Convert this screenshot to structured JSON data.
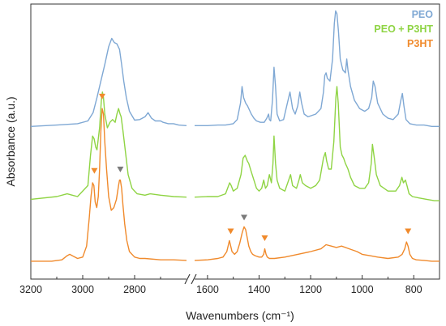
{
  "chart_data": {
    "type": "line",
    "xlabel": "Wavenumbers (cm⁻¹)",
    "ylabel": "Absorbance (a.u.)",
    "x_reversed": true,
    "x_broken_axis": true,
    "x_segments": [
      [
        3200,
        2600
      ],
      [
        1650,
        700
      ]
    ],
    "ylim": [
      0,
      1
    ],
    "grid": false,
    "legend_placement": "top-right",
    "x_ticks": [
      {
        "value": 3200,
        "label": "3200"
      },
      {
        "value": 3000,
        "label": "3000"
      },
      {
        "value": 2800,
        "label": "2800"
      },
      {
        "value": 1600,
        "label": "1600"
      },
      {
        "value": 1400,
        "label": "1400"
      },
      {
        "value": 1200,
        "label": "1200"
      },
      {
        "value": 1000,
        "label": "1000"
      },
      {
        "value": 800,
        "label": "800"
      }
    ],
    "series": [
      {
        "name": "PEO",
        "color": "#7fa8d4",
        "x": [
          3200,
          3100,
          3020,
          2980,
          2960,
          2945,
          2930,
          2915,
          2900,
          2888,
          2878,
          2868,
          2858,
          2850,
          2842,
          2832,
          2820,
          2800,
          2780,
          2760,
          2748,
          2735,
          2720,
          2700,
          2690,
          2670,
          2650,
          2630,
          2600,
          1650,
          1600,
          1560,
          1530,
          1500,
          1485,
          1472,
          1466,
          1460,
          1452,
          1445,
          1430,
          1420,
          1410,
          1395,
          1380,
          1370,
          1363,
          1360,
          1355,
          1348,
          1342,
          1336,
          1330,
          1320,
          1305,
          1290,
          1280,
          1270,
          1260,
          1250,
          1242,
          1235,
          1225,
          1210,
          1180,
          1160,
          1150,
          1145,
          1140,
          1135,
          1125,
          1115,
          1108,
          1103,
          1098,
          1092,
          1085,
          1075,
          1065,
          1060,
          1055,
          1045,
          1030,
          1010,
          990,
          975,
          963,
          957,
          950,
          940,
          920,
          900,
          880,
          860,
          850,
          844,
          838,
          830,
          815,
          790,
          760,
          730,
          700
        ],
        "y": [
          0.555,
          0.56,
          0.565,
          0.575,
          0.605,
          0.66,
          0.72,
          0.78,
          0.845,
          0.875,
          0.86,
          0.855,
          0.835,
          0.78,
          0.72,
          0.66,
          0.61,
          0.578,
          0.58,
          0.59,
          0.605,
          0.585,
          0.575,
          0.575,
          0.57,
          0.565,
          0.565,
          0.56,
          0.558,
          0.558,
          0.558,
          0.56,
          0.56,
          0.565,
          0.58,
          0.64,
          0.7,
          0.66,
          0.64,
          0.63,
          0.6,
          0.585,
          0.575,
          0.57,
          0.57,
          0.585,
          0.6,
          0.58,
          0.575,
          0.65,
          0.77,
          0.7,
          0.6,
          0.575,
          0.58,
          0.64,
          0.68,
          0.62,
          0.6,
          0.63,
          0.68,
          0.64,
          0.6,
          0.59,
          0.6,
          0.62,
          0.68,
          0.74,
          0.75,
          0.73,
          0.72,
          0.8,
          0.93,
          0.975,
          0.965,
          0.9,
          0.8,
          0.76,
          0.75,
          0.8,
          0.76,
          0.7,
          0.65,
          0.62,
          0.61,
          0.62,
          0.66,
          0.72,
          0.7,
          0.64,
          0.6,
          0.585,
          0.58,
          0.6,
          0.65,
          0.675,
          0.63,
          0.58,
          0.565,
          0.56,
          0.56,
          0.555,
          0.555
        ]
      },
      {
        "name": "PEO + P3HT",
        "color": "#8fd444",
        "x": [
          3200,
          3100,
          3060,
          3040,
          3020,
          2980,
          2970,
          2962,
          2956,
          2950,
          2945,
          2935,
          2928,
          2924,
          2920,
          2915,
          2905,
          2895,
          2885,
          2875,
          2868,
          2862,
          2856,
          2852,
          2845,
          2835,
          2825,
          2810,
          2790,
          2760,
          2740,
          2700,
          2650,
          2600,
          1650,
          1600,
          1560,
          1530,
          1514,
          1508,
          1500,
          1485,
          1470,
          1462,
          1454,
          1446,
          1440,
          1430,
          1420,
          1410,
          1400,
          1390,
          1382,
          1375,
          1368,
          1360,
          1352,
          1346,
          1342,
          1336,
          1330,
          1320,
          1300,
          1285,
          1278,
          1270,
          1255,
          1245,
          1240,
          1232,
          1220,
          1200,
          1180,
          1165,
          1150,
          1143,
          1138,
          1130,
          1120,
          1110,
          1102,
          1098,
          1093,
          1085,
          1078,
          1072,
          1065,
          1060,
          1055,
          1045,
          1030,
          1010,
          990,
          975,
          965,
          960,
          953,
          945,
          930,
          900,
          870,
          855,
          846,
          840,
          832,
          826,
          818,
          805,
          780,
          750,
          720,
          700
        ],
        "y": [
          0.29,
          0.3,
          0.31,
          0.305,
          0.3,
          0.34,
          0.45,
          0.52,
          0.51,
          0.48,
          0.47,
          0.55,
          0.65,
          0.68,
          0.66,
          0.6,
          0.55,
          0.57,
          0.58,
          0.57,
          0.6,
          0.62,
          0.6,
          0.59,
          0.54,
          0.46,
          0.38,
          0.33,
          0.31,
          0.305,
          0.31,
          0.305,
          0.3,
          0.298,
          0.298,
          0.3,
          0.3,
          0.31,
          0.35,
          0.34,
          0.32,
          0.33,
          0.38,
          0.44,
          0.45,
          0.43,
          0.42,
          0.39,
          0.36,
          0.33,
          0.32,
          0.33,
          0.36,
          0.33,
          0.34,
          0.38,
          0.35,
          0.42,
          0.52,
          0.42,
          0.36,
          0.33,
          0.32,
          0.36,
          0.38,
          0.34,
          0.33,
          0.36,
          0.38,
          0.35,
          0.34,
          0.33,
          0.34,
          0.36,
          0.44,
          0.46,
          0.43,
          0.4,
          0.4,
          0.5,
          0.66,
          0.7,
          0.64,
          0.48,
          0.45,
          0.44,
          0.42,
          0.41,
          0.4,
          0.37,
          0.34,
          0.33,
          0.33,
          0.35,
          0.42,
          0.49,
          0.44,
          0.38,
          0.34,
          0.32,
          0.32,
          0.34,
          0.37,
          0.35,
          0.36,
          0.34,
          0.31,
          0.3,
          0.295,
          0.29,
          0.285,
          0.285
        ]
      },
      {
        "name": "P3HT",
        "color": "#f08a2c",
        "x": [
          3200,
          3120,
          3080,
          3060,
          3050,
          3040,
          3020,
          3000,
          2985,
          2975,
          2968,
          2962,
          2957,
          2952,
          2946,
          2940,
          2935,
          2930,
          2925,
          2920,
          2915,
          2908,
          2900,
          2890,
          2880,
          2870,
          2862,
          2858,
          2855,
          2850,
          2845,
          2838,
          2830,
          2820,
          2800,
          2780,
          2760,
          2700,
          2650,
          2600,
          1650,
          1600,
          1560,
          1540,
          1525,
          1515,
          1510,
          1505,
          1495,
          1485,
          1475,
          1465,
          1458,
          1452,
          1446,
          1440,
          1432,
          1425,
          1415,
          1400,
          1390,
          1382,
          1378,
          1373,
          1368,
          1360,
          1340,
          1300,
          1250,
          1200,
          1160,
          1140,
          1120,
          1100,
          1080,
          1050,
          1020,
          1000,
          970,
          940,
          900,
          860,
          845,
          835,
          828,
          822,
          815,
          805,
          790,
          760,
          730,
          700
        ],
        "y": [
          0.065,
          0.065,
          0.07,
          0.085,
          0.09,
          0.085,
          0.075,
          0.08,
          0.12,
          0.22,
          0.3,
          0.35,
          0.34,
          0.28,
          0.26,
          0.3,
          0.4,
          0.54,
          0.62,
          0.6,
          0.5,
          0.4,
          0.3,
          0.25,
          0.26,
          0.29,
          0.34,
          0.36,
          0.36,
          0.33,
          0.27,
          0.2,
          0.14,
          0.1,
          0.08,
          0.075,
          0.075,
          0.07,
          0.07,
          0.068,
          0.068,
          0.07,
          0.075,
          0.08,
          0.1,
          0.14,
          0.12,
          0.1,
          0.09,
          0.1,
          0.13,
          0.17,
          0.19,
          0.18,
          0.15,
          0.12,
          0.1,
          0.09,
          0.085,
          0.08,
          0.08,
          0.09,
          0.11,
          0.09,
          0.08,
          0.075,
          0.075,
          0.08,
          0.09,
          0.1,
          0.11,
          0.125,
          0.12,
          0.115,
          0.12,
          0.11,
          0.1,
          0.09,
          0.085,
          0.08,
          0.075,
          0.08,
          0.09,
          0.11,
          0.135,
          0.12,
          0.09,
          0.075,
          0.07,
          0.068,
          0.065,
          0.065
        ]
      }
    ],
    "markers": [
      {
        "series": "P3HT",
        "x": 2955,
        "y": 0.395,
        "color": "#f08a2c"
      },
      {
        "series": "P3HT",
        "x": 2925,
        "y": 0.665,
        "color": "#f08a2c"
      },
      {
        "series": "P3HT",
        "x": 1510,
        "y": 0.175,
        "color": "#f08a2c"
      },
      {
        "series": "P3HT",
        "x": 1378,
        "y": 0.15,
        "color": "#f08a2c"
      },
      {
        "series": "P3HT",
        "x": 822,
        "y": 0.175,
        "color": "#f08a2c"
      },
      {
        "series": "PEO + P3HT",
        "x": 2855,
        "y": 0.4,
        "color": "#7a7a7a"
      },
      {
        "series": "PEO + P3HT",
        "x": 1458,
        "y": 0.225,
        "color": "#7a7a7a"
      }
    ]
  }
}
